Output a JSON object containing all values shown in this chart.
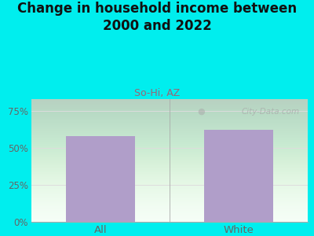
{
  "title": "Change in household income between\n2000 and 2022",
  "subtitle": "So-Hi, AZ",
  "categories": [
    "All",
    "White"
  ],
  "values": [
    58,
    62
  ],
  "bar_color": "#b09ec9",
  "title_fontsize": 12,
  "subtitle_fontsize": 9,
  "subtitle_color": "#996677",
  "title_color": "#111111",
  "ylim": [
    0,
    83
  ],
  "yticks": [
    0,
    25,
    50,
    75
  ],
  "ytick_labels": [
    "0%",
    "25%",
    "50%",
    "75%"
  ],
  "background_outer": "#00eeee",
  "grid_color": "#dddddd",
  "watermark_text": "City-Data.com",
  "tick_color": "#666666",
  "axis_color": "#aaaaaa",
  "plot_bg_top": "#e0f0e0",
  "plot_bg_bottom": "#f5fff8"
}
